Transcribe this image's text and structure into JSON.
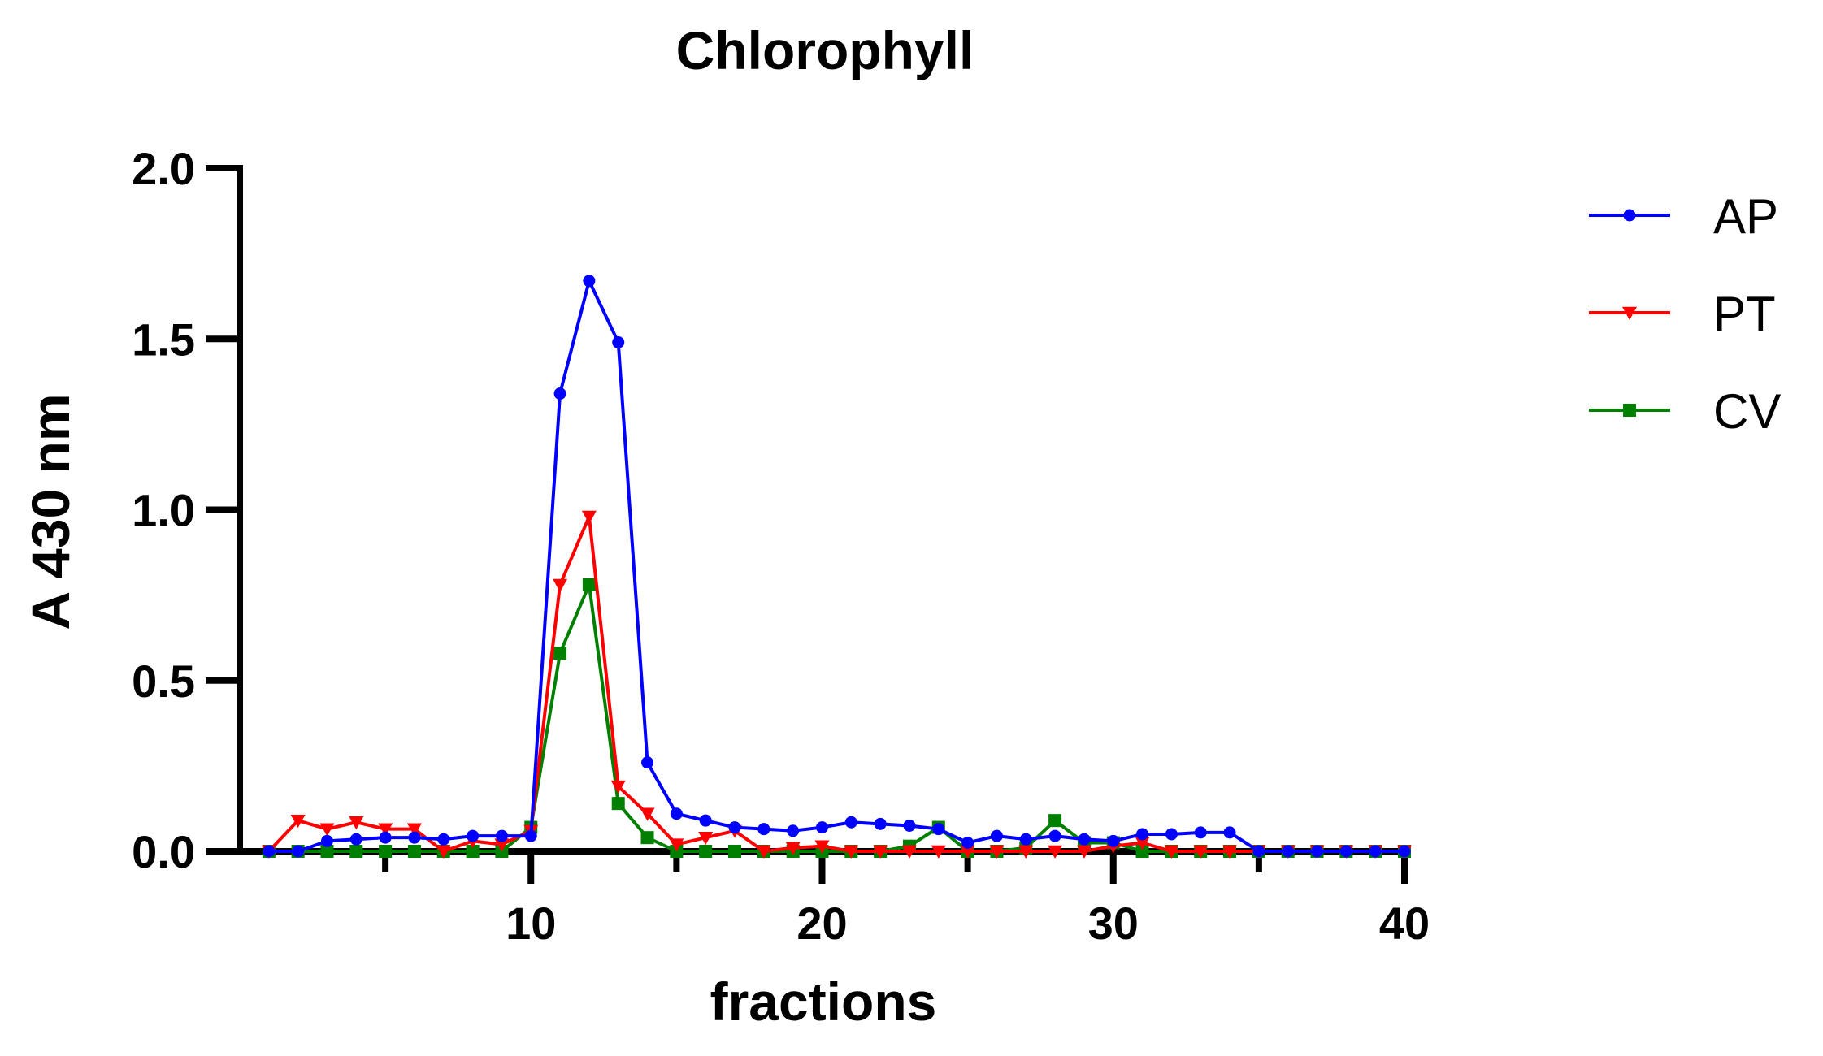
{
  "chart_data": {
    "type": "line",
    "title": "Chlorophyll",
    "xlabel": "fractions",
    "ylabel": "A 430 nm",
    "xlim": [
      0,
      40
    ],
    "ylim": [
      0,
      2.0
    ],
    "x_ticks": [
      10,
      20,
      30,
      40
    ],
    "x_tick_labels": [
      "10",
      "20",
      "30",
      "40"
    ],
    "y_ticks": [
      0,
      0.5,
      1.0,
      1.5,
      2.0
    ],
    "y_tick_labels": [
      "0.0",
      "0.5",
      "1.0",
      "1.5",
      "2.0"
    ],
    "grid": false,
    "legend_position": "right",
    "x": [
      1,
      2,
      3,
      4,
      5,
      6,
      7,
      8,
      9,
      10,
      11,
      12,
      13,
      14,
      15,
      16,
      17,
      18,
      19,
      20,
      21,
      22,
      23,
      24,
      25,
      26,
      27,
      28,
      29,
      30,
      31,
      32,
      33,
      34,
      35,
      36,
      37,
      38,
      39,
      40
    ],
    "series": [
      {
        "name": "AP",
        "color": "#0000ff",
        "marker": "circle",
        "values": [
          0.0,
          0.0,
          0.03,
          0.035,
          0.04,
          0.04,
          0.035,
          0.045,
          0.045,
          0.045,
          1.34,
          1.67,
          1.49,
          0.26,
          0.11,
          0.09,
          0.07,
          0.065,
          0.06,
          0.07,
          0.085,
          0.08,
          0.075,
          0.065,
          0.025,
          0.045,
          0.035,
          0.045,
          0.035,
          0.03,
          0.05,
          0.05,
          0.055,
          0.055,
          0.0,
          0.0,
          0.0,
          0.0,
          0.0,
          0.0
        ]
      },
      {
        "name": "PT",
        "color": "#ff0000",
        "marker": "triangle-down",
        "values": [
          0.0,
          0.09,
          0.065,
          0.085,
          0.065,
          0.065,
          0.0,
          0.03,
          0.02,
          0.06,
          0.78,
          0.98,
          0.19,
          0.11,
          0.02,
          0.04,
          0.06,
          0.0,
          0.01,
          0.015,
          0.0,
          0.0,
          0.0,
          0.0,
          0.0,
          0.0,
          0.0,
          0.0,
          0.0,
          0.015,
          0.025,
          0.0,
          0.0,
          0.0,
          0.0,
          0.0,
          0.0,
          0.0,
          0.0,
          0.0
        ]
      },
      {
        "name": "CV",
        "color": "#008000",
        "marker": "square",
        "values": [
          0.0,
          0.0,
          0.0,
          0.0,
          0.0,
          0.0,
          0.0,
          0.0,
          0.0,
          0.07,
          0.58,
          0.78,
          0.14,
          0.04,
          0.0,
          0.0,
          0.0,
          0.0,
          0.0,
          0.0,
          0.0,
          0.0,
          0.015,
          0.07,
          0.0,
          0.0,
          0.01,
          0.09,
          0.025,
          0.025,
          0.0,
          0.0,
          0.0,
          0.0,
          0.0,
          0.0,
          0.0,
          0.0,
          0.0,
          0.0
        ]
      }
    ]
  }
}
